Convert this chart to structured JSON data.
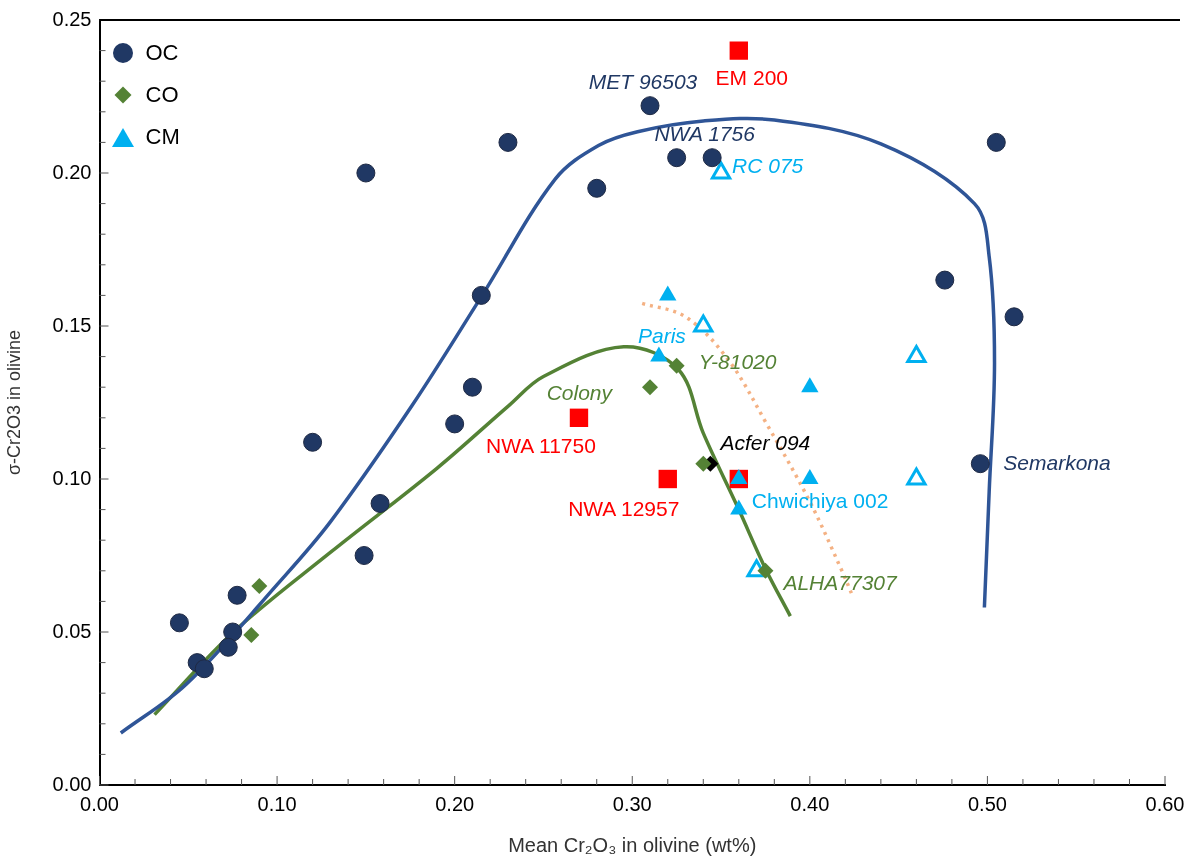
{
  "chart_data": {
    "type": "scatter",
    "xlabel": "Mean Cr₂O₃ in olivine (wt%)",
    "ylabel": "σ-Cr2O3 in olivine",
    "xlim": [
      0,
      0.6
    ],
    "ylim": [
      0,
      0.25
    ],
    "xticks": [
      {
        "value": 0,
        "label": "0.00"
      },
      {
        "value": 0.02,
        "label": null
      },
      {
        "value": 0.04,
        "label": null
      },
      {
        "value": 0.06,
        "label": null
      },
      {
        "value": 0.08,
        "label": null
      },
      {
        "value": 0.1,
        "label": "0.10"
      },
      {
        "value": 0.12,
        "label": null
      },
      {
        "value": 0.14,
        "label": null
      },
      {
        "value": 0.16,
        "label": null
      },
      {
        "value": 0.18,
        "label": null
      },
      {
        "value": 0.2,
        "label": "0.20"
      },
      {
        "value": 0.22,
        "label": null
      },
      {
        "value": 0.24,
        "label": null
      },
      {
        "value": 0.26,
        "label": null
      },
      {
        "value": 0.28,
        "label": null
      },
      {
        "value": 0.3,
        "label": "0.30"
      },
      {
        "value": 0.32,
        "label": null
      },
      {
        "value": 0.34,
        "label": null
      },
      {
        "value": 0.36,
        "label": null
      },
      {
        "value": 0.38,
        "label": null
      },
      {
        "value": 0.4,
        "label": "0.40"
      },
      {
        "value": 0.42,
        "label": null
      },
      {
        "value": 0.44,
        "label": null
      },
      {
        "value": 0.46,
        "label": null
      },
      {
        "value": 0.48,
        "label": null
      },
      {
        "value": 0.5,
        "label": "0.50"
      },
      {
        "value": 0.52,
        "label": null
      },
      {
        "value": 0.54,
        "label": null
      },
      {
        "value": 0.56,
        "label": null
      },
      {
        "value": 0.58,
        "label": null
      },
      {
        "value": 0.6,
        "label": "0.60"
      }
    ],
    "yticks": [
      {
        "value": 0,
        "label": "0.00"
      },
      {
        "value": 0.01,
        "label": null
      },
      {
        "value": 0.02,
        "label": null
      },
      {
        "value": 0.03,
        "label": null
      },
      {
        "value": 0.04,
        "label": null
      },
      {
        "value": 0.05,
        "label": "0.05"
      },
      {
        "value": 0.06,
        "label": null
      },
      {
        "value": 0.07,
        "label": null
      },
      {
        "value": 0.08,
        "label": null
      },
      {
        "value": 0.09,
        "label": null
      },
      {
        "value": 0.1,
        "label": "0.10"
      },
      {
        "value": 0.11,
        "label": null
      },
      {
        "value": 0.12,
        "label": null
      },
      {
        "value": 0.13,
        "label": null
      },
      {
        "value": 0.14,
        "label": null
      },
      {
        "value": 0.15,
        "label": "0.15"
      },
      {
        "value": 0.16,
        "label": null
      },
      {
        "value": 0.17,
        "label": null
      },
      {
        "value": 0.18,
        "label": null
      },
      {
        "value": 0.19,
        "label": null
      },
      {
        "value": 0.2,
        "label": "0.20"
      },
      {
        "value": 0.21,
        "label": null
      },
      {
        "value": 0.22,
        "label": null
      },
      {
        "value": 0.23,
        "label": null
      },
      {
        "value": 0.24,
        "label": null
      },
      {
        "value": 0.25,
        "label": "0.25"
      }
    ],
    "grid": false,
    "legend": "top left",
    "series": [
      {
        "name": "OC",
        "type": "scatter",
        "marker": "circle",
        "color": "#203864",
        "x": [
          0.15,
          0.23,
          0.28,
          0.215,
          0.21,
          0.31,
          0.325,
          0.345,
          0.505,
          0.476,
          0.515,
          0.496,
          0.12,
          0.2,
          0.158,
          0.149,
          0.0775,
          0.045,
          0.075,
          0.0725,
          0.055,
          0.059
        ],
        "values": [
          0.2,
          0.21,
          0.195,
          0.16,
          0.13,
          0.222,
          0.205,
          0.205,
          0.21,
          0.165,
          0.153,
          0.105,
          0.112,
          0.118,
          0.092,
          0.075,
          0.062,
          0.053,
          0.05,
          0.045,
          0.04,
          0.038
        ]
      },
      {
        "name": "CO",
        "type": "scatter",
        "marker": "diamond",
        "color": "#548235",
        "x": [
          0.09,
          0.0855,
          0.325,
          0.31,
          0.34,
          0.375
        ],
        "values": [
          0.065,
          0.049,
          0.137,
          0.13,
          0.105,
          0.07
        ]
      },
      {
        "name": "CM",
        "type": "scatter",
        "marker": "triangle",
        "color": "#00b0f0",
        "x": [
          0.32,
          0.315,
          0.4,
          0.36,
          0.4,
          0.36
        ],
        "values": [
          0.16,
          0.14,
          0.13,
          0.1,
          0.1,
          0.09
        ]
      },
      {
        "type": "scatter",
        "marker": "triangle-open",
        "color": "#00b0f0",
        "x": [
          0.35,
          0.34,
          0.46,
          0.46,
          0.37
        ],
        "values": [
          0.2,
          0.15,
          0.14,
          0.1,
          0.07
        ]
      },
      {
        "type": "scatter",
        "marker": "square",
        "color": "#ff0000",
        "x": [
          0.36,
          0.27,
          0.32,
          0.36
        ],
        "values": [
          0.24,
          0.12,
          0.1,
          0.1
        ]
      },
      {
        "type": "scatter",
        "marker": "diamond",
        "color": "#000000",
        "x": [
          0.344
        ],
        "values": [
          0.105
        ]
      },
      {
        "type": "line",
        "marker": "none",
        "line_style": "solid",
        "color": "#2f5597",
        "x": [
          0.012,
          0.049,
          0.1,
          0.13,
          0.176,
          0.2155,
          0.2566,
          0.281,
          0.303,
          0.34,
          0.38,
          0.44,
          0.4927,
          0.501,
          0.504,
          0.501,
          0.4983
        ],
        "values": [
          0.017,
          0.033,
          0.0655,
          0.086,
          0.124,
          0.16,
          0.198,
          0.209,
          0.2135,
          0.217,
          0.2173,
          0.2095,
          0.19,
          0.1726,
          0.138,
          0.096,
          0.058
        ]
      },
      {
        "type": "line",
        "marker": "none",
        "line_style": "solid",
        "color": "#548235",
        "x": [
          0.031,
          0.0755,
          0.13,
          0.19,
          0.2305,
          0.25,
          0.2952,
          0.326,
          0.34,
          0.36,
          0.375,
          0.389
        ],
        "values": [
          0.023,
          0.05,
          0.076,
          0.1035,
          0.124,
          0.1335,
          0.1432,
          0.1358,
          0.115,
          0.09,
          0.0707,
          0.0552
        ]
      },
      {
        "type": "line",
        "marker": "none",
        "line_style": "dotted",
        "color": "#f4b183",
        "x": [
          0.3056,
          0.33,
          0.354,
          0.376,
          0.4,
          0.4183,
          0.4234
        ],
        "values": [
          0.1574,
          0.153,
          0.139,
          0.1177,
          0.0926,
          0.0697,
          0.0627
        ]
      }
    ],
    "annotations": [
      {
        "text": "MET 96503",
        "x": 0.31,
        "y": 0.222
      },
      {
        "text": "EM 200",
        "x": 0.36,
        "y": 0.24
      },
      {
        "text": "NWA 1756",
        "x": 0.325,
        "y": 0.205
      },
      {
        "text": "RC 075",
        "x": 0.35,
        "y": 0.2
      },
      {
        "text": "Paris",
        "x": 0.315,
        "y": 0.14
      },
      {
        "text": "Y-81020",
        "x": 0.325,
        "y": 0.137
      },
      {
        "text": "Colony",
        "x": 0.31,
        "y": 0.13
      },
      {
        "text": "NWA 11750",
        "x": 0.27,
        "y": 0.12
      },
      {
        "text": "NWA 12957",
        "x": 0.32,
        "y": 0.1
      },
      {
        "text": "Chwichiya 002",
        "x": 0.36,
        "y": 0.1
      },
      {
        "text": "Acfer 094",
        "x": 0.344,
        "y": 0.105
      },
      {
        "text": "Semarkona",
        "x": 0.496,
        "y": 0.105
      },
      {
        "text": "ALHA77307",
        "x": 0.375,
        "y": 0.07
      }
    ]
  }
}
